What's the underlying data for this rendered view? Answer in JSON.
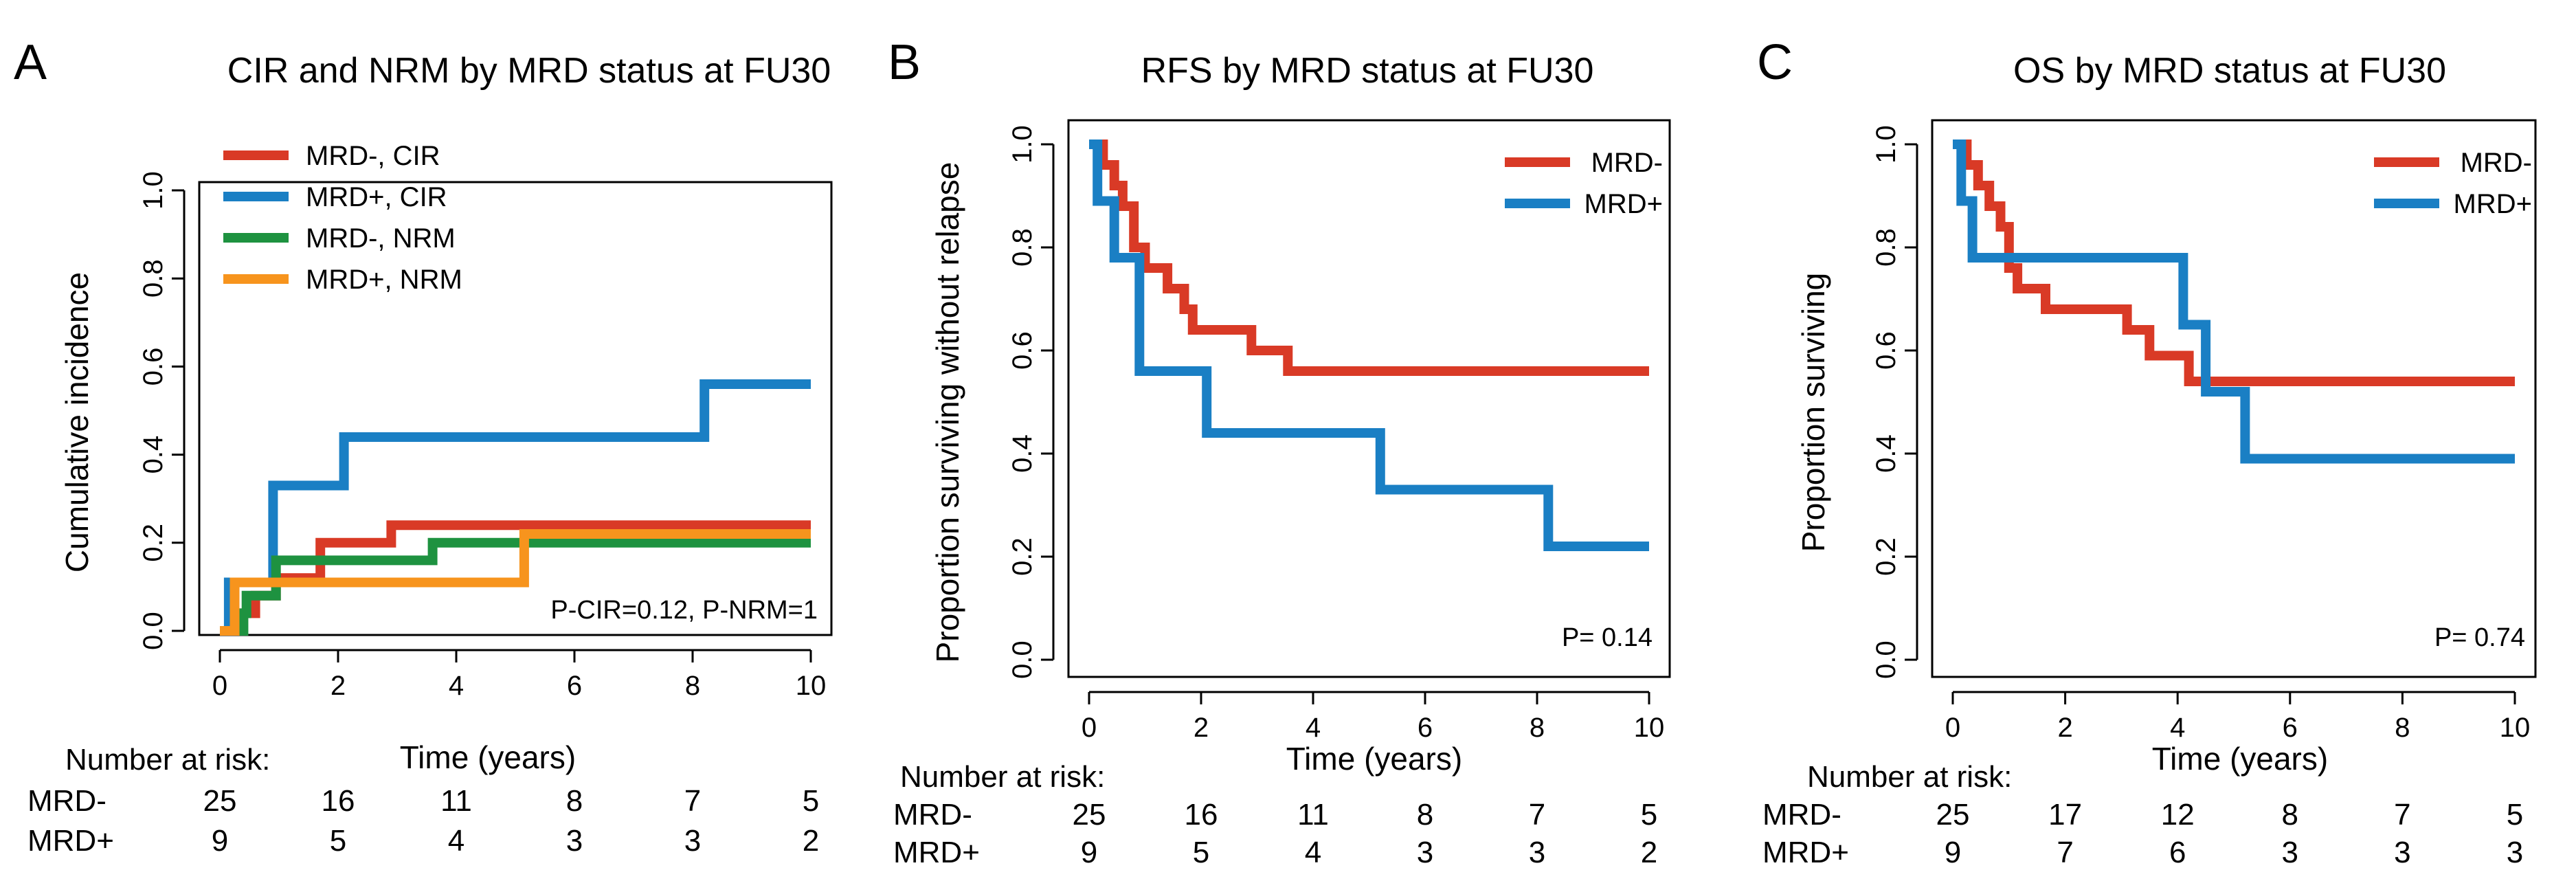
{
  "chart_data": [
    {
      "type": "line",
      "panel_label": "A",
      "title": "CIR and NRM by MRD status at FU30",
      "xlabel": "Time (years)",
      "ylabel": "Cumulative incidence",
      "xlim": [
        0,
        10
      ],
      "ylim": [
        0,
        1
      ],
      "xticks": [
        "0",
        "2",
        "4",
        "6",
        "8",
        "10"
      ],
      "yticks": [
        "0.0",
        "0.2",
        "0.4",
        "0.6",
        "0.8",
        "1.0"
      ],
      "legend_position": "top-left",
      "annotation": "P-CIR=0.12, P-NRM=1",
      "series": [
        {
          "name": "MRD-, CIR",
          "color": "#d93a26",
          "x": [
            0,
            0.35,
            0.35,
            0.6,
            0.6,
            0.95,
            0.95,
            1.7,
            1.7,
            2.9,
            2.9,
            10
          ],
          "y": [
            0,
            0,
            0.04,
            0.04,
            0.08,
            0.08,
            0.12,
            0.12,
            0.2,
            0.2,
            0.24,
            0.24
          ]
        },
        {
          "name": "MRD+, CIR",
          "color": "#1a7fc4",
          "x": [
            0,
            0.15,
            0.15,
            0.9,
            0.9,
            2.1,
            2.1,
            8.2,
            8.2,
            10
          ],
          "y": [
            0,
            0,
            0.11,
            0.11,
            0.33,
            0.33,
            0.44,
            0.44,
            0.56,
            0.56
          ]
        },
        {
          "name": "MRD-, NRM",
          "color": "#1e9240",
          "x": [
            0,
            0.4,
            0.4,
            0.45,
            0.45,
            0.95,
            0.95,
            3.6,
            3.6,
            10
          ],
          "y": [
            0,
            0,
            0.04,
            0.04,
            0.08,
            0.08,
            0.16,
            0.16,
            0.2,
            0.2
          ]
        },
        {
          "name": "MRD+, NRM",
          "color": "#f7941d",
          "x": [
            0,
            0.25,
            0.25,
            5.15,
            5.15,
            10
          ],
          "y": [
            0,
            0,
            0.11,
            0.11,
            0.22,
            0.22
          ]
        }
      ],
      "risk_table": {
        "heading": "Number at risk:",
        "rows": [
          {
            "label": "MRD-",
            "counts": [
              "25",
              "16",
              "11",
              "8",
              "7",
              "5"
            ]
          },
          {
            "label": "MRD+",
            "counts": [
              "9",
              "5",
              "4",
              "3",
              "3",
              "2"
            ]
          }
        ]
      }
    },
    {
      "type": "line",
      "panel_label": "B",
      "title": "RFS by MRD status at FU30",
      "xlabel": "Time (years)",
      "ylabel": "Proportion surviving without relapse",
      "xlim": [
        0,
        10
      ],
      "ylim": [
        0,
        1
      ],
      "xticks": [
        "0",
        "2",
        "4",
        "6",
        "8",
        "10"
      ],
      "yticks": [
        "0.0",
        "0.2",
        "0.4",
        "0.6",
        "0.8",
        "1.0"
      ],
      "legend_position": "top-right",
      "annotation": "P= 0.14",
      "series": [
        {
          "name": "MRD-",
          "color": "#d93a26",
          "x": [
            0,
            0.25,
            0.25,
            0.45,
            0.45,
            0.6,
            0.6,
            0.8,
            0.8,
            1.0,
            1.0,
            1.4,
            1.4,
            1.7,
            1.7,
            1.85,
            1.85,
            2.9,
            2.9,
            3.55,
            3.55,
            10
          ],
          "y": [
            1,
            1,
            0.96,
            0.96,
            0.92,
            0.92,
            0.88,
            0.88,
            0.8,
            0.8,
            0.76,
            0.76,
            0.72,
            0.72,
            0.68,
            0.68,
            0.64,
            0.64,
            0.6,
            0.6,
            0.56,
            0.56
          ]
        },
        {
          "name": "MRD+",
          "color": "#1a7fc4",
          "x": [
            0,
            0.15,
            0.15,
            0.45,
            0.45,
            0.9,
            0.9,
            2.1,
            2.1,
            5.2,
            5.2,
            8.2,
            8.2,
            10
          ],
          "y": [
            1,
            1,
            0.89,
            0.89,
            0.78,
            0.78,
            0.56,
            0.56,
            0.44,
            0.44,
            0.33,
            0.33,
            0.22,
            0.22
          ]
        }
      ],
      "risk_table": {
        "heading": "Number at risk:",
        "rows": [
          {
            "label": "MRD-",
            "counts": [
              "25",
              "16",
              "11",
              "8",
              "7",
              "5"
            ]
          },
          {
            "label": "MRD+",
            "counts": [
              "9",
              "5",
              "4",
              "3",
              "3",
              "2"
            ]
          }
        ]
      }
    },
    {
      "type": "line",
      "panel_label": "C",
      "title": "OS by MRD status at FU30",
      "xlabel": "Time (years)",
      "ylabel": "Proportion surviving",
      "xlim": [
        0,
        10
      ],
      "ylim": [
        0,
        1
      ],
      "xticks": [
        "0",
        "2",
        "4",
        "6",
        "8",
        "10"
      ],
      "yticks": [
        "0.0",
        "0.2",
        "0.4",
        "0.6",
        "0.8",
        "1.0"
      ],
      "legend_position": "top-right",
      "annotation": "P= 0.74",
      "series": [
        {
          "name": "MRD-",
          "color": "#d93a26",
          "x": [
            0,
            0.25,
            0.25,
            0.45,
            0.45,
            0.65,
            0.65,
            0.85,
            0.85,
            1.0,
            1.0,
            1.15,
            1.15,
            1.65,
            1.65,
            3.1,
            3.1,
            3.5,
            3.5,
            4.2,
            4.2,
            10
          ],
          "y": [
            1,
            1,
            0.96,
            0.96,
            0.92,
            0.92,
            0.88,
            0.88,
            0.84,
            0.84,
            0.76,
            0.76,
            0.72,
            0.72,
            0.68,
            0.68,
            0.64,
            0.64,
            0.59,
            0.59,
            0.54,
            0.54
          ]
        },
        {
          "name": "MRD+",
          "color": "#1a7fc4",
          "x": [
            0,
            0.15,
            0.15,
            0.35,
            0.35,
            4.1,
            4.1,
            4.5,
            4.5,
            5.2,
            5.2,
            10
          ],
          "y": [
            1,
            1,
            0.89,
            0.89,
            0.78,
            0.78,
            0.65,
            0.65,
            0.52,
            0.52,
            0.39,
            0.39
          ]
        }
      ],
      "risk_table": {
        "heading": "Number at risk:",
        "rows": [
          {
            "label": "MRD-",
            "counts": [
              "25",
              "17",
              "12",
              "8",
              "7",
              "5"
            ]
          },
          {
            "label": "MRD+",
            "counts": [
              "9",
              "7",
              "6",
              "3",
              "3",
              "3"
            ]
          }
        ]
      }
    }
  ]
}
